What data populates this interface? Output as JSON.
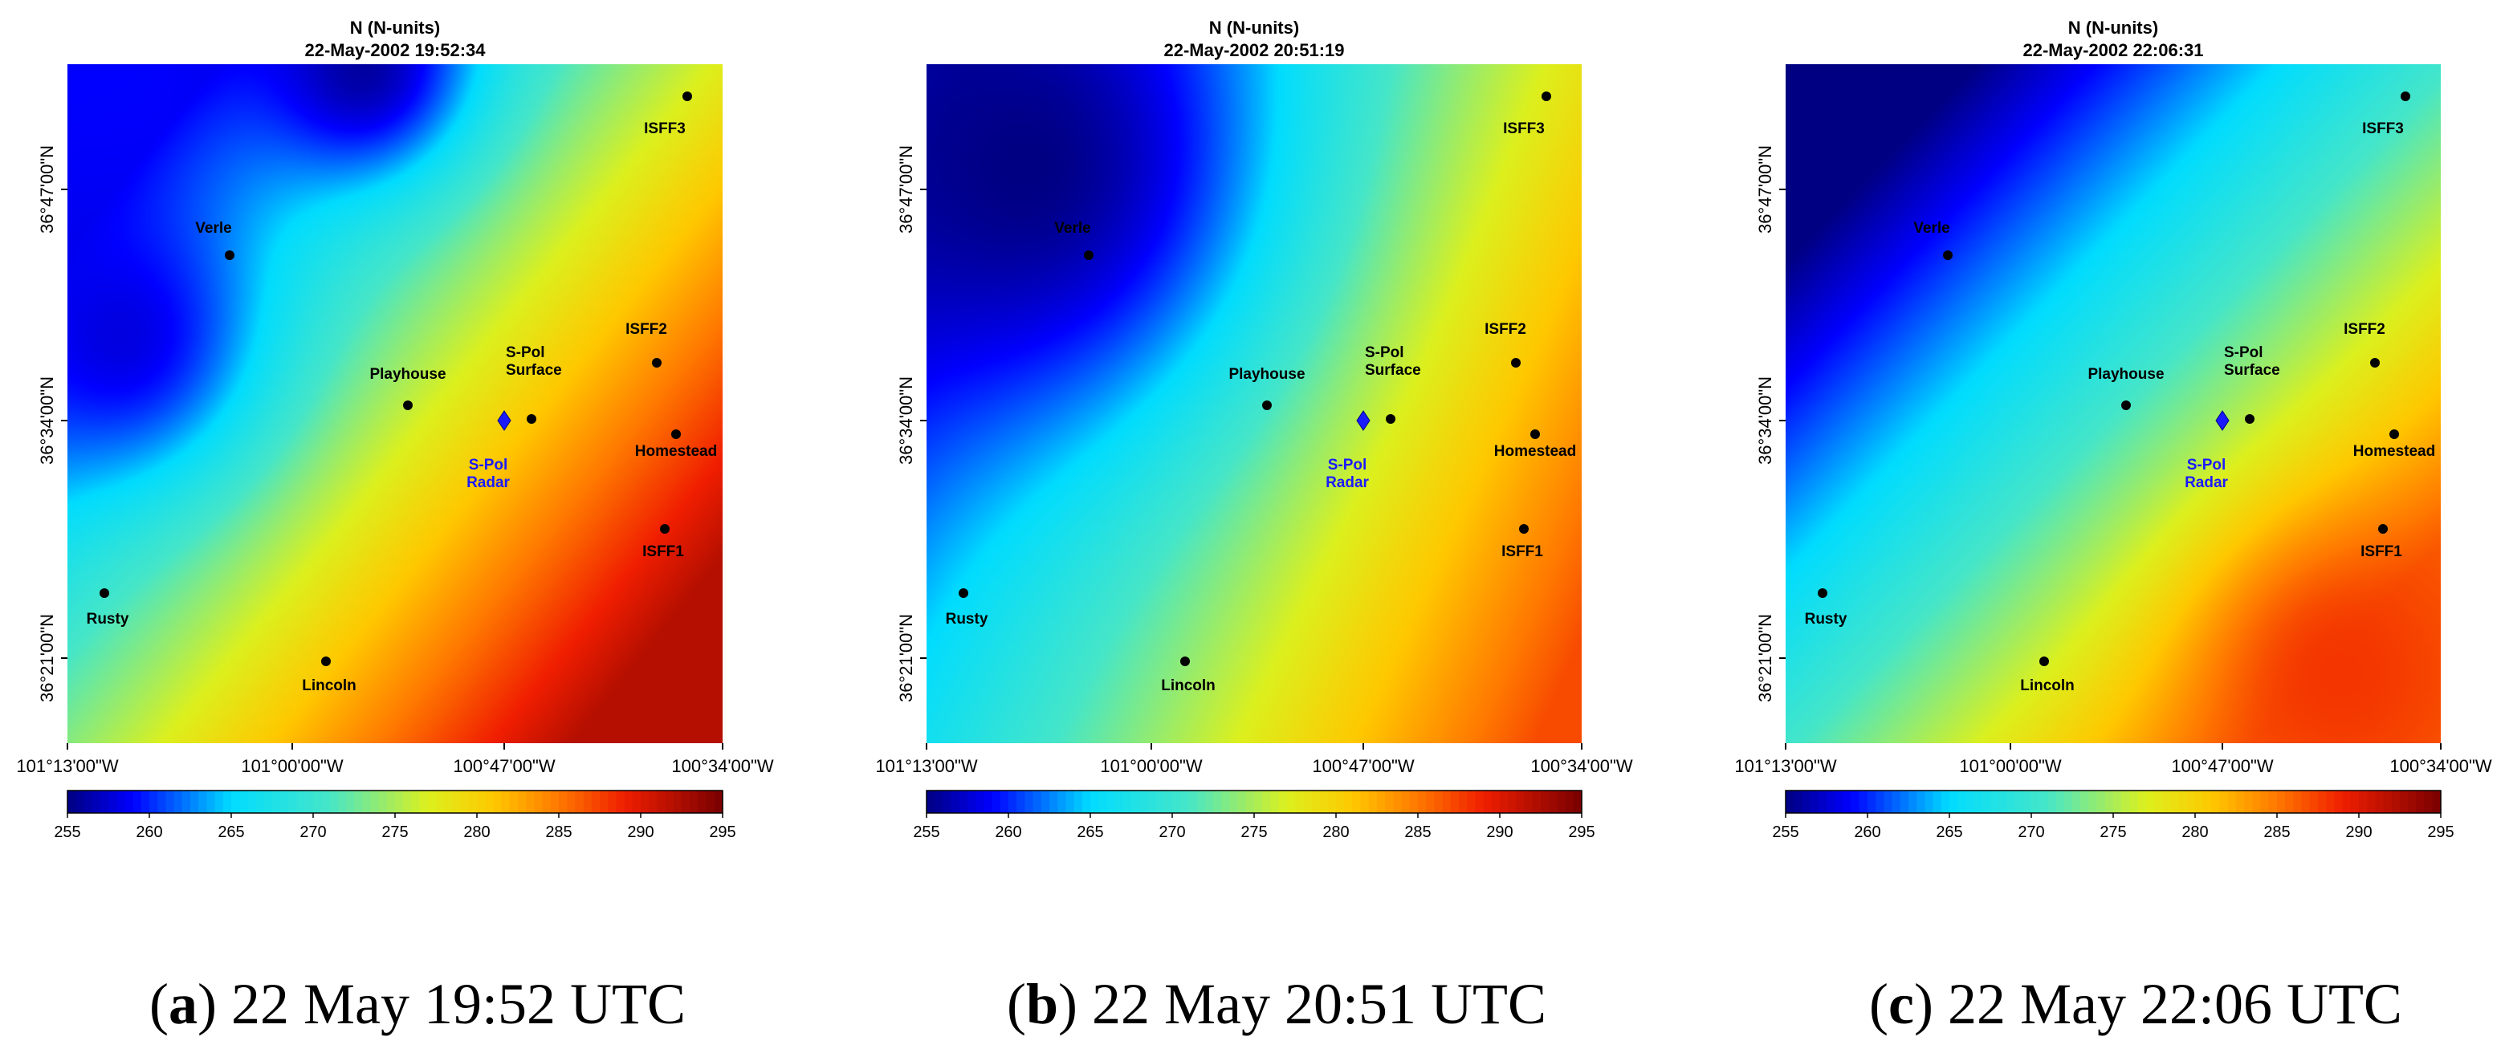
{
  "chart_data": [
    {
      "type": "heatmap",
      "title": "N (N-units)",
      "subtitle": "22-May-2002 19:52:34",
      "caption_letter": "a",
      "caption_text": "22 May 19:52 UTC",
      "x_ticks": [
        "101°13'00\"W",
        "101°00'00\"W",
        "100°47'00\"W",
        "100°34'00\"W"
      ],
      "y_ticks": [
        "36°47'00\"N",
        "36°34'00\"N",
        "36°21'00\"N"
      ],
      "colorbar": {
        "min": 255,
        "max": 295,
        "ticks": [
          "255",
          "260",
          "265",
          "270",
          "275",
          "280",
          "285",
          "290",
          "295"
        ]
      },
      "field": {
        "angle_deg": 40,
        "low": 259,
        "high": 292,
        "blobs": [
          {
            "at": "Verle-west",
            "value": 258
          },
          {
            "at": "north-center",
            "value": 256
          }
        ]
      },
      "stations": [
        {
          "name": "ISFF3",
          "label": "ISFF3"
        },
        {
          "name": "Verle",
          "label": "Verle"
        },
        {
          "name": "ISFF2",
          "label": "ISFF2"
        },
        {
          "name": "Playhouse",
          "label": "Playhouse"
        },
        {
          "name": "S-Pol Surface",
          "label": "S-Pol\nSurface"
        },
        {
          "name": "Homestead",
          "label": "Homestead"
        },
        {
          "name": "ISFF1",
          "label": "ISFF1"
        },
        {
          "name": "Rusty",
          "label": "Rusty"
        },
        {
          "name": "Lincoln",
          "label": "Lincoln"
        }
      ],
      "radar": {
        "label": "S-Pol\nRadar",
        "color": "#1a1aff"
      }
    },
    {
      "type": "heatmap",
      "title": "N (N-units)",
      "subtitle": "22-May-2002 20:51:19",
      "caption_letter": "b",
      "caption_text": "22 May 20:51 UTC",
      "x_ticks": [
        "101°13'00\"W",
        "101°00'00\"W",
        "100°47'00\"W",
        "100°34'00\"W"
      ],
      "y_ticks": [
        "36°47'00\"N",
        "36°34'00\"N",
        "36°21'00\"N"
      ],
      "colorbar": {
        "min": 255,
        "max": 295,
        "ticks": [
          "255",
          "260",
          "265",
          "270",
          "275",
          "280",
          "285",
          "290",
          "295"
        ]
      },
      "field": {
        "angle_deg": 25,
        "low": 258,
        "high": 287,
        "blobs": [
          {
            "at": "north-west",
            "value": 255
          }
        ]
      },
      "stations": [
        {
          "name": "ISFF3",
          "label": "ISFF3"
        },
        {
          "name": "Verle",
          "label": "Verle"
        },
        {
          "name": "ISFF2",
          "label": "ISFF2"
        },
        {
          "name": "Playhouse",
          "label": "Playhouse"
        },
        {
          "name": "S-Pol Surface",
          "label": "S-Pol\nSurface"
        },
        {
          "name": "Homestead",
          "label": "Homestead"
        },
        {
          "name": "ISFF1",
          "label": "ISFF1"
        },
        {
          "name": "Rusty",
          "label": "Rusty"
        },
        {
          "name": "Lincoln",
          "label": "Lincoln"
        }
      ],
      "radar": {
        "label": "S-Pol\nRadar",
        "color": "#1a1aff"
      }
    },
    {
      "type": "heatmap",
      "title": "N (N-units)",
      "subtitle": "22-May-2002 22:06:31",
      "caption_letter": "c",
      "caption_text": "22 May 22:06 UTC",
      "x_ticks": [
        "101°13'00\"W",
        "101°00'00\"W",
        "100°47'00\"W",
        "100°34'00\"W"
      ],
      "y_ticks": [
        "36°47'00\"N",
        "36°34'00\"N",
        "36°21'00\"N"
      ],
      "colorbar": {
        "min": 255,
        "max": 295,
        "ticks": [
          "255",
          "260",
          "265",
          "270",
          "275",
          "280",
          "285",
          "290",
          "295"
        ]
      },
      "field": {
        "angle_deg": 45,
        "low": 255,
        "high": 286,
        "blobs": [
          {
            "at": "south-east",
            "value": 288
          }
        ]
      },
      "stations": [
        {
          "name": "ISFF3",
          "label": "ISFF3"
        },
        {
          "name": "Verle",
          "label": "Verle"
        },
        {
          "name": "ISFF2",
          "label": "ISFF2"
        },
        {
          "name": "Playhouse",
          "label": "Playhouse"
        },
        {
          "name": "S-Pol Surface",
          "label": "S-Pol\nSurface"
        },
        {
          "name": "Homestead",
          "label": "Homestead"
        },
        {
          "name": "ISFF1",
          "label": "ISFF1"
        },
        {
          "name": "Rusty",
          "label": "Rusty"
        },
        {
          "name": "Lincoln",
          "label": "Lincoln"
        }
      ],
      "radar": {
        "label": "S-Pol\nRadar",
        "color": "#1a1aff"
      }
    }
  ]
}
